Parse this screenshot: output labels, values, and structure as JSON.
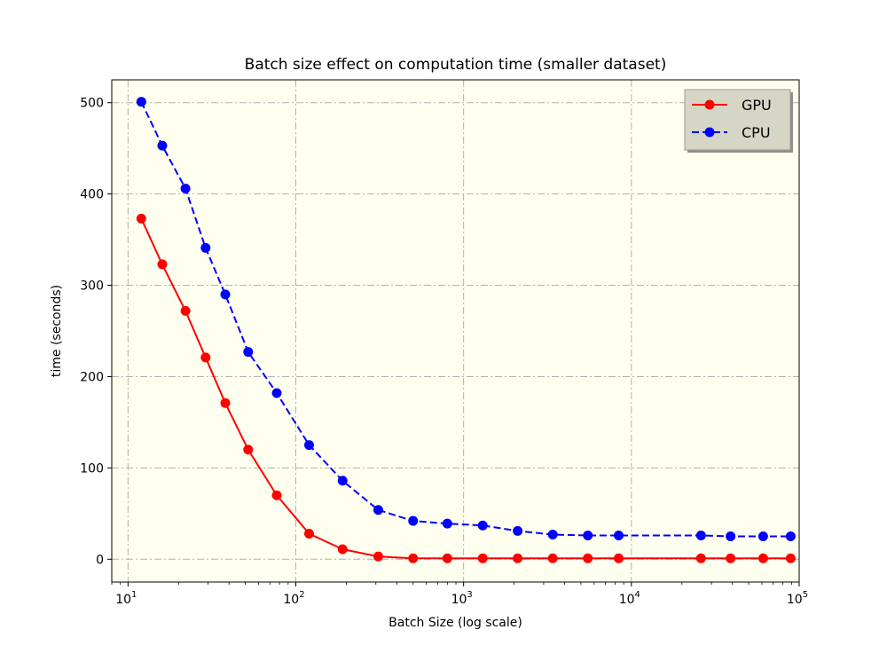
{
  "chart_data": {
    "type": "line",
    "title": "Batch size effect on computation time (smaller dataset)",
    "xlabel": "Batch Size (log scale)",
    "ylabel": "time (seconds)",
    "x_scale": "log",
    "xlim": [
      8,
      100000
    ],
    "ylim": [
      -25,
      525
    ],
    "x_ticks": [
      {
        "value": 10,
        "base": "10",
        "exp": "1"
      },
      {
        "value": 100,
        "base": "10",
        "exp": "2"
      },
      {
        "value": 1000,
        "base": "10",
        "exp": "3"
      },
      {
        "value": 10000,
        "base": "10",
        "exp": "4"
      },
      {
        "value": 100000,
        "base": "10",
        "exp": "5"
      }
    ],
    "y_ticks": [
      {
        "value": 0,
        "label": "0"
      },
      {
        "value": 100,
        "label": "100"
      },
      {
        "value": 200,
        "label": "200"
      },
      {
        "value": 300,
        "label": "300"
      },
      {
        "value": 400,
        "label": "400"
      },
      {
        "value": 500,
        "label": "500"
      }
    ],
    "grid": true,
    "legend_position": "top-right",
    "plot_background": "#fffff0",
    "x": [
      12,
      16,
      22,
      29,
      38,
      52,
      77,
      120,
      190,
      310,
      500,
      800,
      1300,
      2100,
      3400,
      5500,
      8400,
      26000,
      39000,
      61000,
      89000
    ],
    "series": [
      {
        "name": "GPU",
        "color": "#ff0000",
        "line_style": "solid",
        "marker": "circle",
        "values": [
          373,
          323,
          272,
          221,
          171,
          120,
          70,
          28,
          11,
          3,
          1,
          1,
          1,
          1,
          1,
          1,
          1,
          1,
          1,
          1,
          1
        ]
      },
      {
        "name": "CPU",
        "color": "#0000ff",
        "line_style": "dashed",
        "marker": "circle",
        "values": [
          501,
          453,
          406,
          341,
          290,
          227,
          182,
          125,
          86,
          54,
          42,
          39,
          37,
          31,
          27,
          26,
          26,
          26,
          25,
          25,
          25
        ]
      }
    ]
  }
}
